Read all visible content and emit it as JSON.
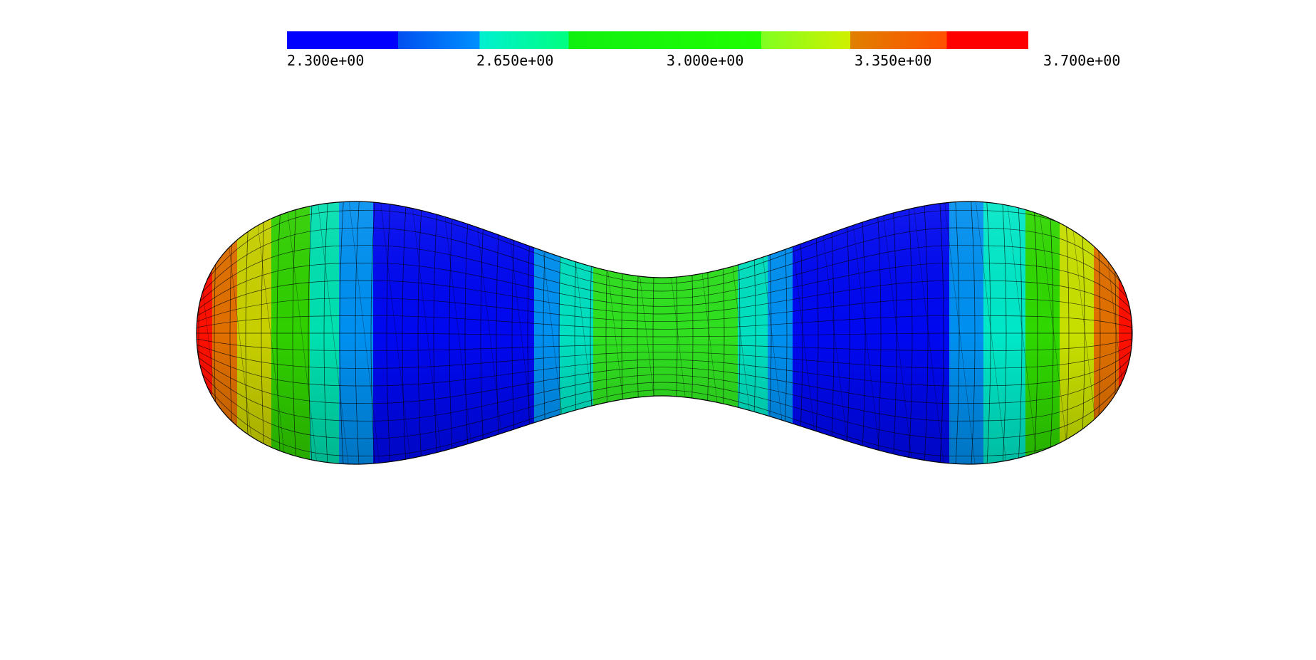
{
  "colorbar": {
    "labels": [
      "2.300e+00",
      "2.650e+00",
      "3.000e+00",
      "3.350e+00",
      "3.700e+00"
    ]
  }
}
